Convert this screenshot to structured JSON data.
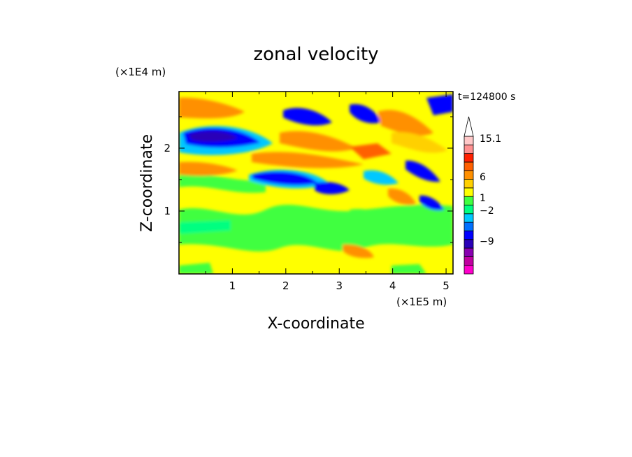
{
  "chart_data": {
    "type": "heatmap",
    "title": "zonal velocity",
    "xlabel": "X-coordinate",
    "ylabel": "Z-coordinate",
    "x_unit": "(×1E5 m)",
    "y_unit": "(×1E4 m)",
    "time_label": "t=124800 s",
    "xlim": [
      0,
      5.13
    ],
    "ylim": [
      0,
      2.9
    ],
    "x_ticks": [
      "1",
      "2",
      "3",
      "4",
      "5"
    ],
    "y_ticks": [
      "1",
      "2"
    ],
    "colorbar": {
      "labels": [
        "15.1",
        "6",
        "1",
        "−2",
        "−9"
      ],
      "levels": [
        {
          "color": "#ff00cc"
        },
        {
          "color": "#c000a0"
        },
        {
          "color": "#8800b0"
        },
        {
          "color": "#2a00b8"
        },
        {
          "color": "#0000ff"
        },
        {
          "color": "#0070ff"
        },
        {
          "color": "#00c8ff"
        },
        {
          "color": "#00ff80"
        },
        {
          "color": "#40ff40"
        },
        {
          "color": "#ffff00"
        },
        {
          "color": "#ffd000"
        },
        {
          "color": "#ff9000"
        },
        {
          "color": "#ff6000"
        },
        {
          "color": "#ff2000"
        },
        {
          "color": "#ff9090"
        },
        {
          "color": "#ffc8c8"
        }
      ],
      "extend_max": true
    }
  }
}
